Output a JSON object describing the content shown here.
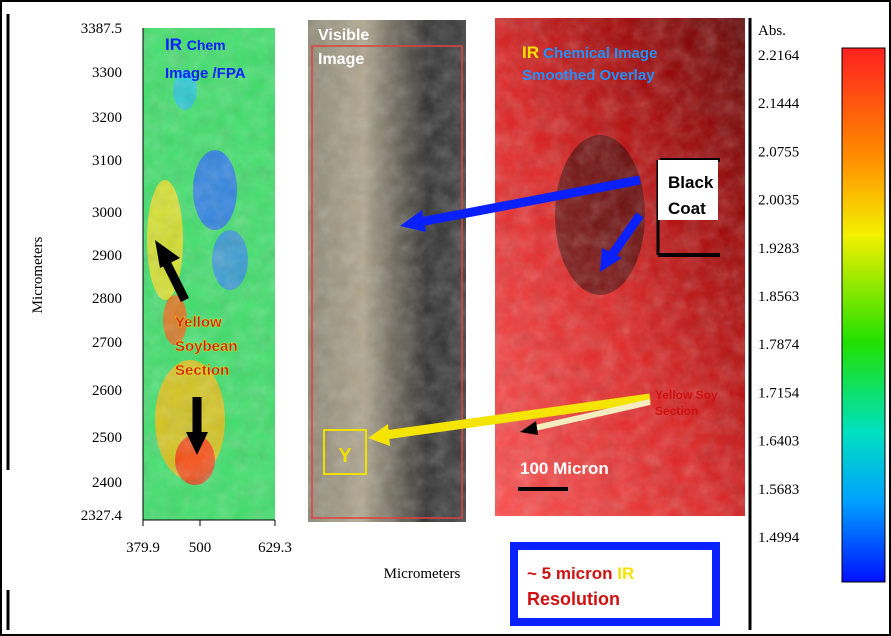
{
  "left_panel": {
    "title_ir": "IR",
    "title_chem": "Chem",
    "title_line2": "Image /FPA",
    "y_ticks": [
      "3387.5",
      "3300",
      "3200",
      "3100",
      "3000",
      "2900",
      "2800",
      "2700",
      "2600",
      "2500",
      "2400",
      "2327.4"
    ],
    "x_ticks": [
      "379.9",
      "500",
      "629.3"
    ],
    "y_axis_label": "Micrometers",
    "x_axis_label": "Micrometers",
    "annotation": [
      "Yellow",
      "Soybean",
      "Section"
    ]
  },
  "middle_panel": {
    "title": [
      "Visible",
      "Image"
    ],
    "marker": "Y"
  },
  "right_panel": {
    "title_ir": "IR",
    "title_rest": "Chemical  Image",
    "title_line2": "Smoothed Overlay",
    "black_coat": [
      "Black",
      "Coat"
    ],
    "yellow_soy": [
      "Yellow Soy",
      "Section"
    ],
    "scale_bar": "100 Micron"
  },
  "colorbar": {
    "label": "Abs.",
    "ticks": [
      "2.2164",
      "2.1444",
      "2.0755",
      "2.0035",
      "1.9283",
      "1.8563",
      "1.7874",
      "1.7154",
      "1.6403",
      "1.5683",
      "1.4994"
    ]
  },
  "resolution_box": {
    "prefix": "~ 5 micron ",
    "ir": "IR",
    "line2": "Resolution"
  }
}
